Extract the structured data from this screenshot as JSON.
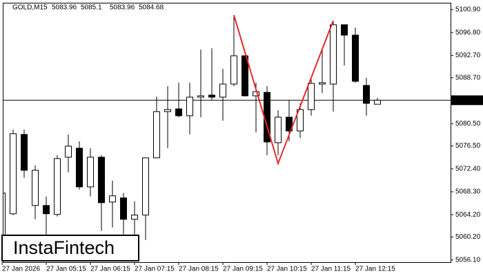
{
  "chart_data": {
    "type": "candlestick",
    "symbol": "GOLD,M15",
    "categories": [
      "27 Jan 2026",
      null,
      null,
      null,
      "27 Jan 05:15",
      null,
      null,
      null,
      "27 Jan 06:15",
      null,
      null,
      null,
      "27 Jan 07:15",
      null,
      null,
      null,
      "27 Jan 08:15",
      null,
      null,
      null,
      "27 Jan 09:15",
      null,
      null,
      null,
      "27 Jan 10:15",
      null,
      null,
      null,
      "27 Jan 11:15",
      null,
      null,
      null,
      "27 Jan 12:15",
      null,
      null
    ],
    "open": [
      5060.05,
      5064.37,
      5078.56,
      5065.85,
      5065.85,
      5064.25,
      5074.49,
      5076.1,
      5069.18,
      5074.49,
      5066.47,
      5067.21,
      5063.38,
      5064.13,
      5074.37,
      5082.64,
      5083.13,
      5081.9,
      5085.23,
      5085.6,
      5085.23,
      5087.57,
      5092.63,
      5085.47,
      5086.09,
      5077.08,
      5081.65,
      5079.18,
      5083.01,
      5087.57,
      5087.57,
      5098.19,
      5096.33,
      5087.33,
      5083.96
    ],
    "high": [
      5069.93,
      5079.43,
      5079.43,
      5073.01,
      5067.46,
      5074.86,
      5078.56,
      5077.33,
      5076.1,
      5074.86,
      5070.3,
      5068.07,
      5066.59,
      5074.37,
      5085.35,
      5087.2,
      5087.82,
      5087.82,
      5093.74,
      5093.99,
      5090.29,
      5099.91,
      5092.76,
      5087.82,
      5087.2,
      5082.88,
      5084.73,
      5084.12,
      5088.44,
      5093.99,
      5098.93,
      5098.19,
      5097.69,
      5088.68,
      5085.1
    ],
    "low": [
      5059.44,
      5064.13,
      5070.79,
      5063.38,
      5060.67,
      5063.88,
      5071.78,
      5068.69,
      5067.46,
      5061.29,
      5061.9,
      5060.67,
      5060.67,
      5059.68,
      5074.37,
      5076.1,
      5081.65,
      5078.56,
      5081.65,
      5084.73,
      5081.03,
      5087.2,
      5085.35,
      5078.93,
      5074.86,
      5074.86,
      5077.33,
      5077.95,
      5081.9,
      5085.97,
      5082.64,
      5090.9,
      5087.82,
      5081.9,
      5083.96
    ],
    "close": [
      5068.07,
      5078.69,
      5072.15,
      5072.15,
      5064.37,
      5074.24,
      5076.47,
      5069.18,
      5074.49,
      5066.35,
      5067.58,
      5063.38,
      5064.13,
      5074.37,
      5082.64,
      5083.01,
      5081.9,
      5085.23,
      5085.47,
      5085.23,
      5087.57,
      5092.63,
      5085.47,
      5086.21,
      5077.21,
      5081.65,
      5079.18,
      5083.01,
      5087.7,
      5087.82,
      5098.19,
      5096.33,
      5088.07,
      5084.12,
      5084.68
    ],
    "up_color": "#ffffff",
    "down_color": "#000000",
    "ylim": [
      5055.7,
      5102.0
    ],
    "yticks": [
      {
        "value": 5100.9,
        "label": "5100.90"
      },
      {
        "value": 5096.8,
        "label": "5096.80"
      },
      {
        "value": 5092.7,
        "label": "5092.70"
      },
      {
        "value": 5088.7,
        "label": "5088.70"
      },
      {
        "value": 5080.5,
        "label": "5080.50"
      },
      {
        "value": 5076.5,
        "label": "5076.50"
      },
      {
        "value": 5072.4,
        "label": "5072.40"
      },
      {
        "value": 5068.3,
        "label": "5068.30"
      },
      {
        "value": 5064.2,
        "label": "5064.20"
      },
      {
        "value": 5060.2,
        "label": "5060.20"
      },
      {
        "value": 5056.1,
        "label": "5056.10"
      }
    ],
    "last_price": 5084.68,
    "pattern_line": {
      "color": "#e8262a",
      "x": [
        21,
        25,
        30
      ],
      "values": [
        5099.91,
        5073.38,
        5098.93
      ]
    },
    "watermark": "InstaFintech"
  }
}
